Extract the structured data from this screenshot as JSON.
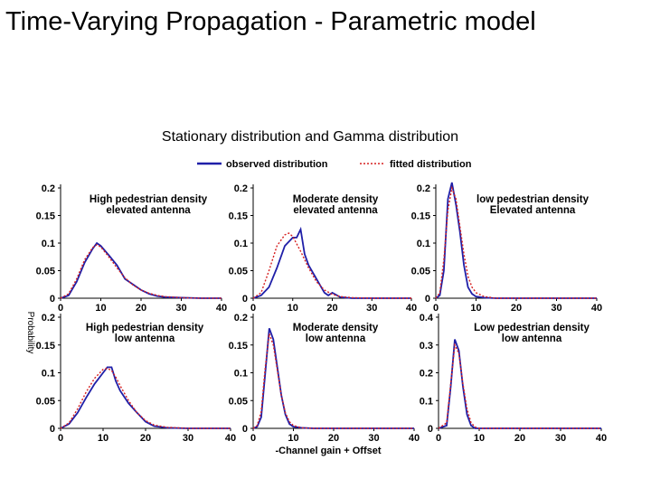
{
  "slide": {
    "title": "Time-Varying Propagation - Parametric model"
  },
  "colors": {
    "observed": "#1f1fa8",
    "fitted": "#d62020",
    "axis": "#000000"
  },
  "chart_data": {
    "type": "line",
    "title": "Stationary distribution and Gamma distribution",
    "xlabel": "-Channel gain + Offset",
    "ylabel": "Probability",
    "legend": {
      "placement": "top",
      "entries": [
        "observed distribution",
        "fitted distribution"
      ]
    },
    "panels": [
      {
        "title": [
          "High pedestrian density",
          "elevated antenna"
        ],
        "xlim": [
          0,
          40
        ],
        "ylim": [
          0,
          0.2
        ],
        "xticks": [
          0,
          10,
          20,
          30,
          40
        ],
        "yticks": [
          0,
          0.05,
          0.1,
          0.15,
          0.2
        ],
        "ytick_labels": [
          "0",
          "0.05",
          "0.1",
          "0.15",
          "0.2"
        ],
        "series": [
          {
            "name": "observed distribution",
            "x": [
              0,
              2,
              4,
              6,
              8,
              9,
              10,
              12,
              14,
              16,
              18,
              20,
              22,
              24,
              26,
              30,
              35,
              40
            ],
            "y": [
              0,
              0.005,
              0.03,
              0.065,
              0.09,
              0.1,
              0.095,
              0.078,
              0.06,
              0.035,
              0.025,
              0.015,
              0.008,
              0.004,
              0.002,
              0.001,
              0,
              0
            ]
          },
          {
            "name": "fitted distribution",
            "x": [
              0,
              2,
              4,
              6,
              8,
              9,
              10,
              12,
              14,
              16,
              18,
              20,
              22,
              24,
              26,
              30,
              35,
              40
            ],
            "y": [
              0,
              0.008,
              0.035,
              0.07,
              0.092,
              0.097,
              0.093,
              0.075,
              0.055,
              0.037,
              0.024,
              0.015,
              0.009,
              0.005,
              0.003,
              0.001,
              0,
              0
            ]
          }
        ]
      },
      {
        "title": [
          "Moderate density",
          "elevated antenna"
        ],
        "xlim": [
          0,
          40
        ],
        "ylim": [
          0,
          0.2
        ],
        "xticks": [
          0,
          10,
          20,
          30,
          40
        ],
        "yticks": [
          0,
          0.05,
          0.1,
          0.15,
          0.2
        ],
        "ytick_labels": [
          "0",
          "0.05",
          "0.1",
          "0.15",
          "0.2"
        ],
        "series": [
          {
            "name": "observed distribution",
            "x": [
              0,
              2,
              4,
              6,
              8,
              10,
              11,
              12,
              13,
              14,
              16,
              18,
              19,
              20,
              22,
              25,
              30,
              40
            ],
            "y": [
              0,
              0.005,
              0.02,
              0.055,
              0.095,
              0.11,
              0.11,
              0.125,
              0.08,
              0.06,
              0.035,
              0.01,
              0.005,
              0.01,
              0.002,
              0,
              0,
              0
            ]
          },
          {
            "name": "fitted distribution",
            "x": [
              0,
              2,
              4,
              6,
              8,
              9,
              10,
              12,
              14,
              16,
              18,
              20,
              22,
              25,
              30,
              40
            ],
            "y": [
              0,
              0.01,
              0.05,
              0.095,
              0.115,
              0.118,
              0.112,
              0.085,
              0.055,
              0.03,
              0.015,
              0.007,
              0.003,
              0.001,
              0,
              0
            ]
          }
        ]
      },
      {
        "title": [
          "low pedestrian density",
          "Elevated antenna"
        ],
        "xlim": [
          0,
          40
        ],
        "ylim": [
          0,
          0.2
        ],
        "xticks": [
          0,
          10,
          20,
          30,
          40
        ],
        "yticks": [
          0,
          0.05,
          0.1,
          0.15,
          0.2
        ],
        "ytick_labels": [
          "0",
          "0.05",
          "0.1",
          "0.15",
          "0.2"
        ],
        "series": [
          {
            "name": "observed distribution",
            "x": [
              0,
              1,
              2,
              3,
              4,
              5,
              6,
              7,
              8,
              9,
              10,
              12,
              15,
              20,
              40
            ],
            "y": [
              0,
              0.005,
              0.05,
              0.18,
              0.21,
              0.17,
              0.12,
              0.06,
              0.02,
              0.008,
              0.003,
              0.001,
              0,
              0,
              0
            ]
          },
          {
            "name": "fitted distribution",
            "x": [
              0,
              1,
              2,
              3,
              4,
              5,
              6,
              7,
              8,
              9,
              10,
              12,
              15,
              20,
              40
            ],
            "y": [
              0,
              0.01,
              0.07,
              0.16,
              0.2,
              0.18,
              0.13,
              0.08,
              0.04,
              0.02,
              0.01,
              0.003,
              0,
              0,
              0
            ]
          }
        ]
      },
      {
        "title": [
          "High pedestrian density",
          "low antenna"
        ],
        "xlim": [
          0,
          40
        ],
        "ylim": [
          0,
          0.2
        ],
        "xticks": [
          0,
          10,
          20,
          30,
          40
        ],
        "yticks": [
          0,
          0.05,
          0.1,
          0.15,
          0.2
        ],
        "ytick_labels": [
          "0",
          "0.05",
          "0.1",
          "0.15",
          "0.2"
        ],
        "series": [
          {
            "name": "observed distribution",
            "x": [
              0,
              2,
              4,
              6,
              8,
              10,
              11,
              12,
              13,
              14,
              16,
              18,
              20,
              22,
              25,
              30,
              40
            ],
            "y": [
              0,
              0.008,
              0.028,
              0.055,
              0.08,
              0.1,
              0.11,
              0.11,
              0.085,
              0.068,
              0.045,
              0.028,
              0.012,
              0.004,
              0.001,
              0,
              0
            ]
          },
          {
            "name": "fitted distribution",
            "x": [
              0,
              2,
              4,
              6,
              8,
              10,
              11,
              12,
              13,
              14,
              16,
              18,
              20,
              22,
              25,
              30,
              40
            ],
            "y": [
              0,
              0.01,
              0.035,
              0.065,
              0.09,
              0.106,
              0.108,
              0.104,
              0.092,
              0.077,
              0.05,
              0.028,
              0.014,
              0.006,
              0.002,
              0,
              0
            ]
          }
        ]
      },
      {
        "title": [
          "Moderate density",
          "low antenna"
        ],
        "xlim": [
          0,
          40
        ],
        "ylim": [
          0,
          0.2
        ],
        "xticks": [
          0,
          10,
          20,
          30,
          40
        ],
        "yticks": [
          0,
          0.05,
          0.1,
          0.15,
          0.2
        ],
        "ytick_labels": [
          "0",
          "0.05",
          "0.1",
          "0.15",
          "0.2"
        ],
        "series": [
          {
            "name": "observed distribution",
            "x": [
              0,
              1,
              2,
              3,
              4,
              5,
              6,
              7,
              8,
              9,
              10,
              12,
              15,
              20,
              30,
              40
            ],
            "y": [
              0,
              0.003,
              0.02,
              0.1,
              0.18,
              0.16,
              0.11,
              0.06,
              0.025,
              0.008,
              0.003,
              0.001,
              0,
              0,
              0,
              0
            ]
          },
          {
            "name": "fitted distribution",
            "x": [
              0,
              1,
              2,
              3,
              4,
              5,
              6,
              7,
              8,
              9,
              10,
              12,
              15,
              20,
              30,
              40
            ],
            "y": [
              0,
              0.005,
              0.03,
              0.11,
              0.17,
              0.15,
              0.105,
              0.06,
              0.028,
              0.012,
              0.005,
              0.001,
              0,
              0,
              0,
              0
            ]
          }
        ]
      },
      {
        "title": [
          "Low pedestrian density",
          "low antenna"
        ],
        "xlim": [
          0,
          40
        ],
        "ylim": [
          0,
          0.4
        ],
        "xticks": [
          0,
          10,
          20,
          30,
          40
        ],
        "yticks": [
          0,
          0.1,
          0.2,
          0.3,
          0.4
        ],
        "ytick_labels": [
          "0",
          "0.1",
          "0.2",
          "0.3",
          "0.4"
        ],
        "series": [
          {
            "name": "observed distribution",
            "x": [
              0,
              2,
              3,
              4,
              5,
              6,
              7,
              8,
              9,
              10,
              12,
              20,
              40
            ],
            "y": [
              0,
              0.01,
              0.15,
              0.32,
              0.28,
              0.15,
              0.05,
              0.01,
              0,
              0,
              0,
              0,
              0
            ]
          },
          {
            "name": "fitted distribution",
            "x": [
              0,
              2,
              3,
              4,
              5,
              6,
              7,
              8,
              9,
              10,
              12,
              20,
              40
            ],
            "y": [
              0,
              0.02,
              0.16,
              0.3,
              0.27,
              0.16,
              0.07,
              0.02,
              0.005,
              0,
              0,
              0,
              0
            ]
          }
        ]
      }
    ]
  }
}
